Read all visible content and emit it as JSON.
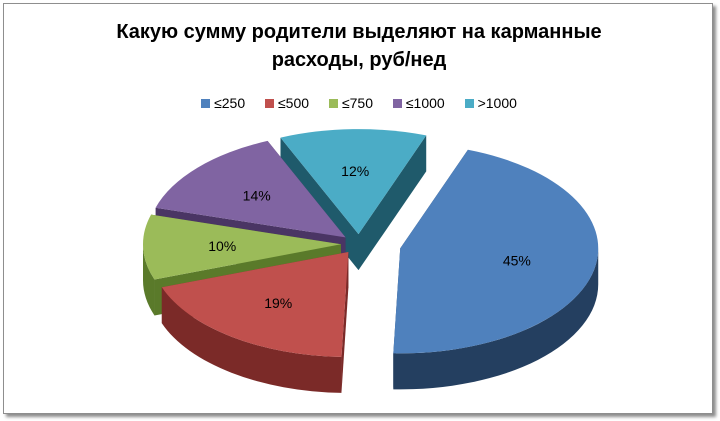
{
  "chart_data": {
    "type": "pie",
    "title": "Какую сумму родители выделяют на карманные расходы, руб/нед",
    "title_lines": [
      "Какую сумму родители выделяют на карманные",
      "расходы, руб/нед"
    ],
    "legend_position": "top",
    "exploded": true,
    "three_d": true,
    "slices": [
      {
        "label": "≤250",
        "value": 45,
        "value_label": "45%",
        "color": "#4f81bd",
        "side_color": "#243f60"
      },
      {
        "label": "≤500",
        "value": 19,
        "value_label": "19%",
        "color": "#c0504d",
        "side_color": "#7b2a28"
      },
      {
        "label": "≤750",
        "value": 10,
        "value_label": "10%",
        "color": "#9bbb59",
        "side_color": "#5a7a2a"
      },
      {
        "label": "≤1000",
        "value": 14,
        "value_label": "14%",
        "color": "#8064a2",
        "side_color": "#4a3564"
      },
      {
        "label": ">1000",
        "value": 12,
        "value_label": "12%",
        "color": "#4bacc6",
        "side_color": "#1f5a6b"
      }
    ]
  }
}
